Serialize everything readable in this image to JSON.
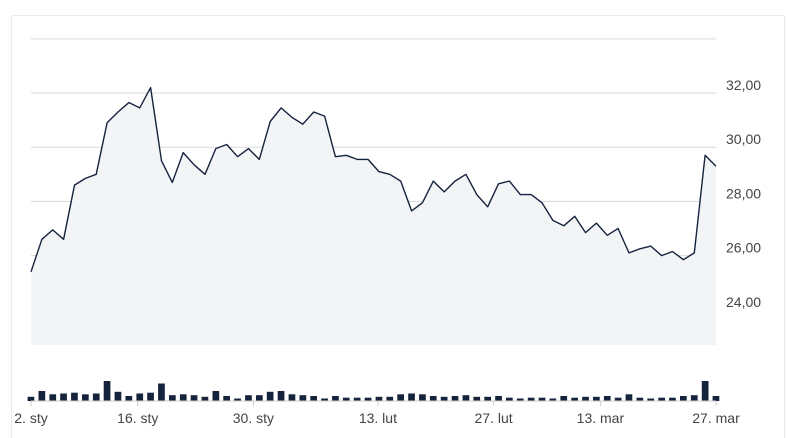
{
  "chart_data": {
    "type": "line",
    "title": "",
    "xlabel": "",
    "ylabel": "",
    "ylim": [
      22.7,
      34.4
    ],
    "x_tick_labels": [
      "2. sty",
      "16. sty",
      "30. sty",
      "13. lut",
      "27. lut",
      "13. mar",
      "27. mar"
    ],
    "y_tick_labels": [
      "24,00",
      "26,00",
      "28,00",
      "30,00",
      "32,00"
    ],
    "y_ticks": [
      24,
      26,
      28,
      30,
      32
    ],
    "grid": true,
    "series": [
      {
        "values": [
          25.4,
          26.6,
          26.95,
          26.6,
          28.6,
          28.85,
          29.0,
          30.9,
          31.3,
          31.65,
          31.45,
          32.2,
          29.5,
          28.7,
          29.8,
          29.35,
          29.0,
          29.95,
          30.1,
          29.65,
          29.95,
          29.55,
          30.95,
          31.45,
          31.1,
          30.85,
          31.3,
          31.15,
          29.65,
          29.7,
          29.55,
          29.55,
          29.1,
          29.0,
          28.75,
          27.65,
          27.95,
          28.75,
          28.35,
          28.75,
          29.0,
          28.25,
          27.8,
          28.65,
          28.75,
          28.25,
          28.25,
          27.95,
          27.3,
          27.1,
          27.45,
          26.85,
          27.2,
          26.75,
          27.0,
          26.1,
          26.25,
          26.35,
          26.0,
          26.15,
          25.85,
          26.1,
          29.7,
          29.3
        ],
        "volumes": [
          0.5,
          1.2,
          0.8,
          0.9,
          1.0,
          0.8,
          0.9,
          2.4,
          1.1,
          0.6,
          0.9,
          1.0,
          2.1,
          0.7,
          0.8,
          0.7,
          0.5,
          1.2,
          0.6,
          0.3,
          0.7,
          0.7,
          1.1,
          1.2,
          0.8,
          0.7,
          0.6,
          0.3,
          0.6,
          0.4,
          0.4,
          0.4,
          0.5,
          0.5,
          0.8,
          0.9,
          0.8,
          0.6,
          0.5,
          0.6,
          0.7,
          0.5,
          0.5,
          0.6,
          0.4,
          0.3,
          0.4,
          0.4,
          0.3,
          0.6,
          0.4,
          0.5,
          0.5,
          0.6,
          0.4,
          0.8,
          0.4,
          0.3,
          0.4,
          0.4,
          0.6,
          0.7,
          2.4,
          0.6
        ]
      }
    ],
    "x_tick_indices": [
      0,
      12,
      25,
      39,
      52,
      64,
      77
    ]
  }
}
